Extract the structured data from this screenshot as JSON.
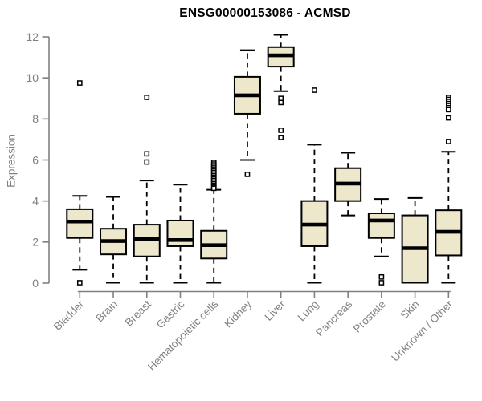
{
  "chart_data": {
    "type": "boxplot",
    "title": "ENSG00000153086 - ACMSD",
    "ylabel": "Expression",
    "xlabel": "",
    "ylim": [
      0,
      12
    ],
    "yticks": [
      0,
      2,
      4,
      6,
      8,
      10,
      12
    ],
    "grid": false,
    "legend": "none",
    "categories": [
      "Bladder",
      "Brain",
      "Breast",
      "Gastric",
      "Hematopoietic cells",
      "Kidney",
      "Liver",
      "Lung",
      "Pancreas",
      "Prostate",
      "Skin",
      "Unknown / Other"
    ],
    "boxes": [
      {
        "category": "Bladder",
        "whisker_low": 0.65,
        "q1": 2.2,
        "median": 3.0,
        "q3": 3.6,
        "whisker_high": 4.25,
        "outliers": [
          9.75,
          0.02
        ]
      },
      {
        "category": "Brain",
        "whisker_low": 0.02,
        "q1": 1.4,
        "median": 2.05,
        "q3": 2.65,
        "whisker_high": 4.2,
        "outliers": []
      },
      {
        "category": "Breast",
        "whisker_low": 0.02,
        "q1": 1.3,
        "median": 2.15,
        "q3": 2.85,
        "whisker_high": 5.0,
        "outliers": [
          9.05,
          6.3,
          5.9
        ]
      },
      {
        "category": "Gastric",
        "whisker_low": 0.02,
        "q1": 1.8,
        "median": 2.1,
        "q3": 3.05,
        "whisker_high": 4.8,
        "outliers": []
      },
      {
        "category": "Hematopoietic cells",
        "whisker_low": 0.02,
        "q1": 1.2,
        "median": 1.85,
        "q3": 2.55,
        "whisker_high": 4.55,
        "outliers": [
          5.88,
          5.8,
          5.72,
          5.64,
          5.56,
          5.48,
          5.4,
          5.32,
          5.24,
          5.16,
          5.08,
          5.0,
          4.92,
          4.84,
          4.76,
          4.68,
          4.62
        ]
      },
      {
        "category": "Kidney",
        "whisker_low": 6.0,
        "q1": 8.25,
        "median": 9.15,
        "q3": 10.05,
        "whisker_high": 11.35,
        "outliers": [
          5.3
        ]
      },
      {
        "category": "Liver",
        "whisker_low": 9.35,
        "q1": 10.55,
        "median": 11.1,
        "q3": 11.5,
        "whisker_high": 12.1,
        "outliers": [
          9.0,
          8.8,
          7.45,
          7.1
        ]
      },
      {
        "category": "Lung",
        "whisker_low": 0.02,
        "q1": 1.8,
        "median": 2.85,
        "q3": 4.0,
        "whisker_high": 6.75,
        "outliers": [
          9.4
        ]
      },
      {
        "category": "Pancreas",
        "whisker_low": 3.3,
        "q1": 4.0,
        "median": 4.85,
        "q3": 5.6,
        "whisker_high": 6.35,
        "outliers": []
      },
      {
        "category": "Prostate",
        "whisker_low": 1.3,
        "q1": 2.2,
        "median": 3.05,
        "q3": 3.4,
        "whisker_high": 4.1,
        "outliers": [
          0.3,
          0.02
        ]
      },
      {
        "category": "Skin",
        "whisker_low": 0.02,
        "q1": 0.02,
        "median": 1.7,
        "q3": 3.3,
        "whisker_high": 4.15,
        "outliers": []
      },
      {
        "category": "Unknown / Other",
        "whisker_low": 0.02,
        "q1": 1.35,
        "median": 2.5,
        "q3": 3.55,
        "whisker_high": 6.4,
        "outliers": [
          9.05,
          8.95,
          8.85,
          8.75,
          8.65,
          8.55,
          8.45,
          8.05,
          6.9
        ]
      }
    ],
    "colors": {
      "box_fill": "#EDE8CC",
      "box_stroke": "#000000",
      "median": "#000000",
      "whisker": "#000000",
      "axis": "#808080",
      "tick_label": "#808080",
      "title": "#000000",
      "background": "#ffffff"
    }
  }
}
